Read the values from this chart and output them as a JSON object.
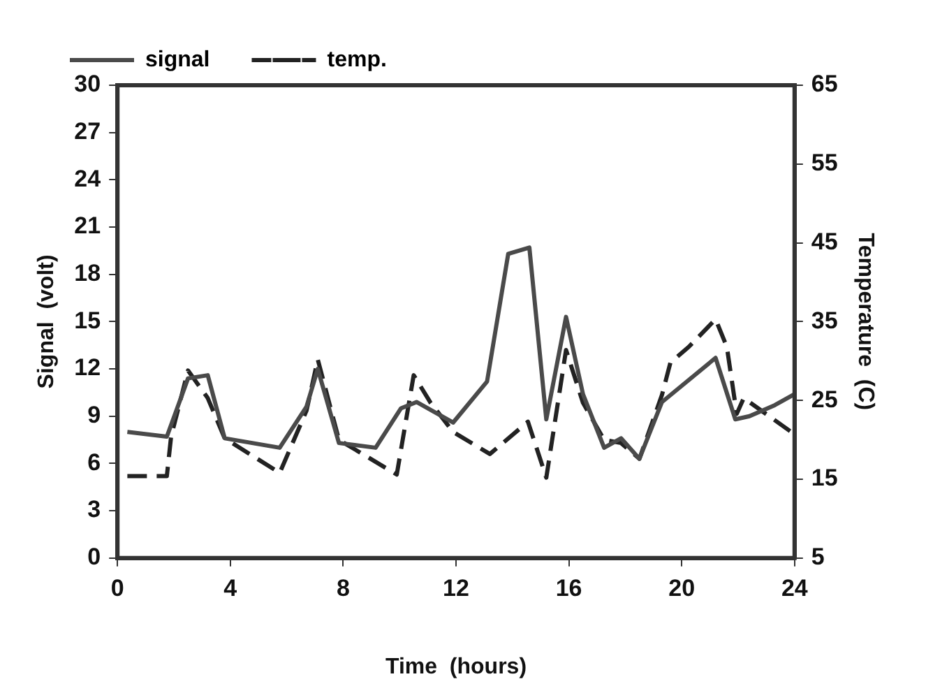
{
  "chart_data": {
    "type": "line",
    "xlabel": "Time  (hours)",
    "ylabel": "Signal  (volt)",
    "y2label": "Temperature  (C)",
    "xlim": [
      0,
      24
    ],
    "xticks": [
      0,
      4,
      8,
      12,
      16,
      20,
      24
    ],
    "ylim": [
      0,
      30
    ],
    "yticks": [
      0,
      3,
      6,
      9,
      12,
      15,
      18,
      21,
      24,
      27,
      30
    ],
    "y2lim": [
      5,
      65
    ],
    "y2ticks": [
      5,
      15,
      25,
      35,
      45,
      55,
      65
    ],
    "grid": false,
    "legend": "top",
    "marker": "none",
    "series": [
      {
        "name": "signal",
        "color": "#4a4a4a",
        "line_style": "solid",
        "x": [
          0.35,
          1.75,
          2.5,
          3.2,
          3.8,
          5.75,
          6.7,
          7.1,
          7.85,
          9.15,
          10.05,
          10.6,
          11.9,
          13.1,
          13.85,
          14.6,
          15.2,
          15.9,
          16.5,
          17.25,
          17.85,
          18.5,
          19.3,
          21.2,
          21.9,
          22.4,
          23.3,
          24
        ],
        "values": [
          8.0,
          7.7,
          11.4,
          11.6,
          7.6,
          7.0,
          9.6,
          12.0,
          7.3,
          7.0,
          9.5,
          9.9,
          8.6,
          11.2,
          19.3,
          19.7,
          8.8,
          15.3,
          10.4,
          7.0,
          7.6,
          6.3,
          9.9,
          12.7,
          8.8,
          9.0,
          9.7,
          10.4
        ]
      },
      {
        "name": "temp.",
        "color": "#222222",
        "line_style": "dashed",
        "axis": "y2",
        "x": [
          0.35,
          1.75,
          1.9,
          2.5,
          3.2,
          3.8,
          5.75,
          6.7,
          7.1,
          7.85,
          9.9,
          10.5,
          11.1,
          11.9,
          13.2,
          14.55,
          15.2,
          15.9,
          16.5,
          17.25,
          17.85,
          18.5,
          19.3,
          19.6,
          20.25,
          21.2,
          21.6,
          21.95,
          22.2,
          24
        ],
        "values": [
          15.4,
          15.4,
          20.4,
          28.8,
          25.3,
          20.2,
          15.8,
          23.7,
          30.2,
          20.0,
          15.6,
          28.2,
          24.7,
          21.0,
          18.2,
          22.3,
          15.2,
          31.4,
          24.7,
          20.0,
          19.6,
          17.6,
          25.7,
          29.8,
          31.8,
          35.3,
          31.8,
          23.3,
          25.3,
          20.7
        ]
      }
    ]
  }
}
